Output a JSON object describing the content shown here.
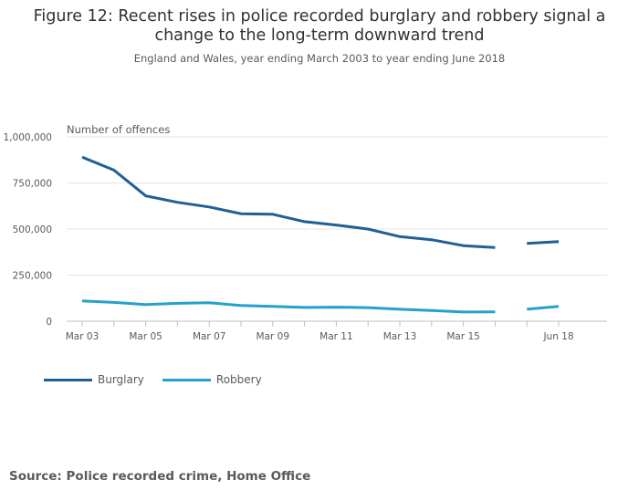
{
  "title": "Figure 12: Recent rises in police recorded burglary and robbery signal a change to the long-term downward trend",
  "subtitle": "England and Wales, year ending March 2003 to year ending June 2018",
  "source": "Source: Police recorded crime, Home Office",
  "colors": {
    "burglary": "#206095",
    "robbery": "#27a0cc"
  },
  "chart_data": {
    "type": "line",
    "ylabel": "Number of offences",
    "ylim": [
      0,
      1000000
    ],
    "yticks": [
      0,
      250000,
      500000,
      750000,
      1000000
    ],
    "ytick_labels": [
      "0",
      "250,000",
      "500,000",
      "750,000",
      "1,000,000"
    ],
    "x": [
      "Mar 03",
      "Mar 04",
      "Mar 05",
      "Mar 06",
      "Mar 07",
      "Mar 08",
      "Mar 09",
      "Mar 10",
      "Mar 11",
      "Mar 12",
      "Mar 13",
      "Mar 14",
      "Mar 15",
      "Mar 16",
      "Mar 17",
      "Jun 18"
    ],
    "xtick_labels": [
      "Mar 03",
      "",
      "Mar 05",
      "",
      "Mar 07",
      "",
      "Mar 09",
      "",
      "Mar 11",
      "",
      "Mar 13",
      "",
      "Mar 15",
      "",
      "",
      "Jun 18"
    ],
    "grid": true,
    "legend_position": "bottom-left",
    "series": [
      {
        "name": "Burglary",
        "color": "#206095",
        "segments": [
          {
            "x": [
              "Mar 03",
              "Mar 04",
              "Mar 05",
              "Mar 06",
              "Mar 07",
              "Mar 08",
              "Mar 09",
              "Mar 10",
              "Mar 11",
              "Mar 12",
              "Mar 13",
              "Mar 14",
              "Mar 15",
              "Mar 16"
            ],
            "values": [
              890000,
              820000,
              680000,
              645000,
              620000,
              583000,
              580000,
              540000,
              522000,
              500000,
              459000,
              442000,
              410000,
              400000
            ]
          },
          {
            "x": [
              "Mar 17",
              "Jun 18"
            ],
            "values": [
              422000,
              432000
            ]
          }
        ]
      },
      {
        "name": "Robbery",
        "color": "#27a0cc",
        "segments": [
          {
            "x": [
              "Mar 03",
              "Mar 04",
              "Mar 05",
              "Mar 06",
              "Mar 07",
              "Mar 08",
              "Mar 09",
              "Mar 10",
              "Mar 11",
              "Mar 12",
              "Mar 13",
              "Mar 14",
              "Mar 15",
              "Mar 16"
            ],
            "values": [
              110000,
              102000,
              90000,
              97000,
              100000,
              85000,
              80000,
              75000,
              76000,
              74000,
              65000,
              58000,
              50000,
              51000
            ]
          },
          {
            "x": [
              "Mar 17",
              "Jun 18"
            ],
            "values": [
              65000,
              80000
            ]
          }
        ]
      }
    ]
  }
}
